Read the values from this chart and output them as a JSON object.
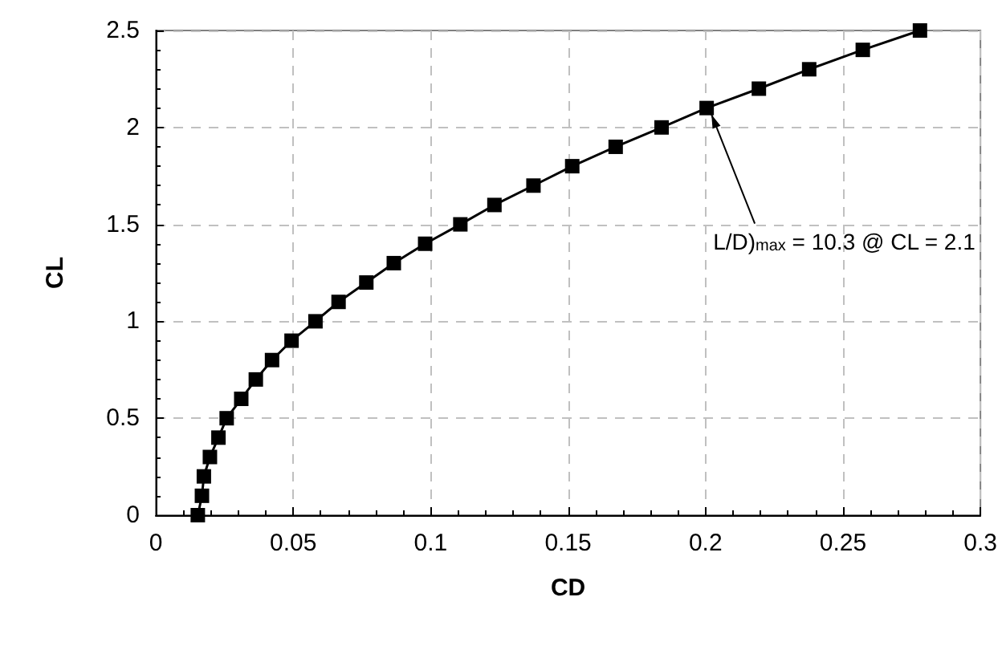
{
  "chart_data": {
    "type": "line",
    "xlabel": "CD",
    "ylabel": "CL",
    "marker": "square",
    "line_style": "solid",
    "grid": true,
    "xlim": [
      0,
      0.3
    ],
    "xticks": [
      0,
      0.05,
      0.1,
      0.15,
      0.2,
      0.25,
      0.3
    ],
    "ylim": [
      0,
      2.5
    ],
    "yticks": [
      0,
      0.5,
      1,
      1.5,
      2,
      2.5
    ],
    "series": [
      {
        "color": "#000000",
        "x": [
          0.0153,
          0.0168,
          0.0175,
          0.0197,
          0.0228,
          0.0258,
          0.0311,
          0.0364,
          0.0423,
          0.0494,
          0.0581,
          0.0665,
          0.0766,
          0.0866,
          0.098,
          0.1108,
          0.1232,
          0.1374,
          0.1515,
          0.1673,
          0.184,
          0.2004,
          0.2194,
          0.2377,
          0.2572,
          0.278
        ],
        "values": [
          0,
          0.1,
          0.2,
          0.3,
          0.4,
          0.5,
          0.6,
          0.7,
          0.8,
          0.9,
          1.0,
          1.1,
          1.2,
          1.3,
          1.4,
          1.5,
          1.6,
          1.7,
          1.8,
          1.9,
          2.0,
          2.1,
          2.2,
          2.3,
          2.4,
          2.5
        ]
      }
    ],
    "annotations": [
      {
        "text": "L/D)$_{max}$ = 10.3 @ CL = 2.1",
        "x": 0.2004,
        "y": 2.1
      }
    ]
  }
}
